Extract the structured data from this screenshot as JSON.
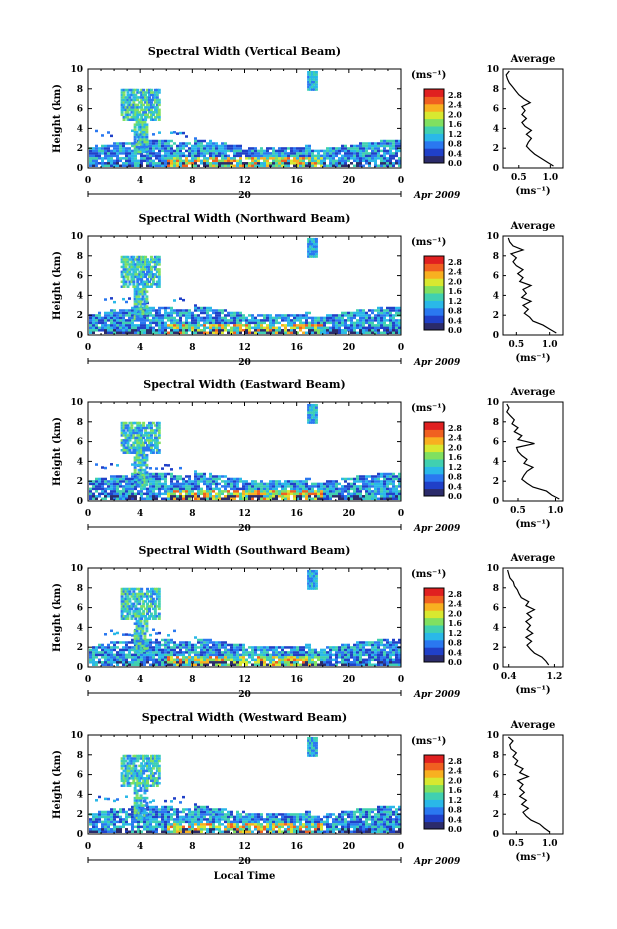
{
  "figure": {
    "xlabel": "Local Time",
    "date_label": "Apr 2009",
    "day_label": "20",
    "ylabel": "Height (km)",
    "units": "(ms⁻¹)",
    "avg_title": "Average",
    "avg_xlabel": "(ms⁻¹)"
  },
  "colorbar": {
    "ticks": [
      "2.8",
      "2.4",
      "2.0",
      "1.6",
      "1.2",
      "0.8",
      "0.4",
      "0.0"
    ],
    "colors": [
      "#2b2b6a",
      "#2040c8",
      "#2a78f0",
      "#2ab8e8",
      "#40d0b0",
      "#80e060",
      "#d8e830",
      "#f8b020",
      "#f06020",
      "#e02020"
    ]
  },
  "chart_data": [
    {
      "type": "heatmap",
      "title": "Spectral Width (Vertical Beam)",
      "xlabel": "Local Time",
      "ylabel": "Height (km)",
      "x_ticks": [
        "0",
        "4",
        "8",
        "12",
        "16",
        "20",
        "0"
      ],
      "y_ticks": [
        "0",
        "2",
        "4",
        "6",
        "8",
        "10"
      ],
      "xlim": [
        0,
        24
      ],
      "ylim": [
        0,
        10
      ],
      "avg": {
        "title": "Average",
        "x_ticks": [
          "0.5",
          "1.0"
        ],
        "xlim": [
          0.25,
          1.2
        ],
        "profile": [
          [
            1.05,
            0.2
          ],
          [
            0.95,
            0.6
          ],
          [
            0.85,
            1.0
          ],
          [
            0.75,
            1.4
          ],
          [
            0.68,
            1.8
          ],
          [
            0.62,
            2.2
          ],
          [
            0.65,
            2.6
          ],
          [
            0.7,
            3.0
          ],
          [
            0.62,
            3.4
          ],
          [
            0.7,
            3.8
          ],
          [
            0.6,
            4.2
          ],
          [
            0.55,
            4.6
          ],
          [
            0.62,
            5.0
          ],
          [
            0.55,
            5.4
          ],
          [
            0.6,
            5.8
          ],
          [
            0.55,
            6.2
          ],
          [
            0.68,
            6.6
          ],
          [
            0.58,
            7.0
          ],
          [
            0.5,
            7.4
          ],
          [
            0.45,
            7.8
          ],
          [
            0.4,
            8.2
          ],
          [
            0.35,
            8.6
          ],
          [
            0.32,
            9.0
          ],
          [
            0.3,
            9.4
          ],
          [
            0.35,
            9.8
          ]
        ]
      }
    },
    {
      "type": "heatmap",
      "title": "Spectral Width (Northward Beam)",
      "xlabel": "Local Time",
      "ylabel": "Height (km)",
      "x_ticks": [
        "0",
        "4",
        "8",
        "12",
        "16",
        "20",
        "0"
      ],
      "y_ticks": [
        "0",
        "2",
        "4",
        "6",
        "8",
        "10"
      ],
      "xlim": [
        0,
        24
      ],
      "ylim": [
        0,
        10
      ],
      "avg": {
        "title": "Average",
        "x_ticks": [
          "0.5",
          "1.0"
        ],
        "xlim": [
          0.3,
          1.2
        ],
        "profile": [
          [
            1.1,
            0.2
          ],
          [
            1.0,
            0.6
          ],
          [
            0.9,
            1.0
          ],
          [
            0.75,
            1.4
          ],
          [
            0.7,
            1.8
          ],
          [
            0.62,
            2.2
          ],
          [
            0.68,
            2.6
          ],
          [
            0.6,
            3.0
          ],
          [
            0.72,
            3.4
          ],
          [
            0.58,
            3.8
          ],
          [
            0.65,
            4.2
          ],
          [
            0.6,
            4.6
          ],
          [
            0.72,
            5.0
          ],
          [
            0.55,
            5.4
          ],
          [
            0.6,
            5.8
          ],
          [
            0.52,
            6.2
          ],
          [
            0.6,
            6.6
          ],
          [
            0.5,
            7.0
          ],
          [
            0.45,
            7.4
          ],
          [
            0.5,
            7.8
          ],
          [
            0.42,
            8.2
          ],
          [
            0.6,
            8.6
          ],
          [
            0.45,
            9.0
          ],
          [
            0.4,
            9.4
          ],
          [
            0.38,
            9.8
          ]
        ]
      }
    },
    {
      "type": "heatmap",
      "title": "Spectral Width (Eastward Beam)",
      "xlabel": "Local Time",
      "ylabel": "Height (km)",
      "x_ticks": [
        "0",
        "4",
        "8",
        "12",
        "16",
        "20",
        "0"
      ],
      "y_ticks": [
        "0",
        "2",
        "4",
        "6",
        "8",
        "10"
      ],
      "xlim": [
        0,
        24
      ],
      "ylim": [
        0,
        10
      ],
      "avg": {
        "title": "Average",
        "x_ticks": [
          "0.5",
          "1.0"
        ],
        "xlim": [
          0.3,
          1.1
        ],
        "profile": [
          [
            1.05,
            0.2
          ],
          [
            0.95,
            0.6
          ],
          [
            0.88,
            1.0
          ],
          [
            0.7,
            1.4
          ],
          [
            0.62,
            1.8
          ],
          [
            0.55,
            2.2
          ],
          [
            0.58,
            2.6
          ],
          [
            0.62,
            3.0
          ],
          [
            0.7,
            3.4
          ],
          [
            0.58,
            3.8
          ],
          [
            0.62,
            4.2
          ],
          [
            0.55,
            4.6
          ],
          [
            0.5,
            5.0
          ],
          [
            0.48,
            5.4
          ],
          [
            0.72,
            5.8
          ],
          [
            0.5,
            6.2
          ],
          [
            0.55,
            6.6
          ],
          [
            0.45,
            7.0
          ],
          [
            0.5,
            7.4
          ],
          [
            0.42,
            7.8
          ],
          [
            0.45,
            8.2
          ],
          [
            0.4,
            8.6
          ],
          [
            0.35,
            9.0
          ],
          [
            0.38,
            9.4
          ],
          [
            0.35,
            9.8
          ]
        ]
      }
    },
    {
      "type": "heatmap",
      "title": "Spectral Width (Southward Beam)",
      "xlabel": "Local Time",
      "ylabel": "Height (km)",
      "x_ticks": [
        "0",
        "4",
        "8",
        "12",
        "16",
        "20",
        "0"
      ],
      "y_ticks": [
        "0",
        "2",
        "4",
        "6",
        "8",
        "10"
      ],
      "xlim": [
        0,
        24
      ],
      "ylim": [
        0,
        10
      ],
      "avg": {
        "title": "Average",
        "x_ticks": [
          "0.4",
          "1.2"
        ],
        "xlim": [
          0.3,
          1.35
        ],
        "profile": [
          [
            1.1,
            0.2
          ],
          [
            1.05,
            0.6
          ],
          [
            0.98,
            1.0
          ],
          [
            0.85,
            1.4
          ],
          [
            0.78,
            1.8
          ],
          [
            0.72,
            2.2
          ],
          [
            0.8,
            2.6
          ],
          [
            0.7,
            3.0
          ],
          [
            0.82,
            3.4
          ],
          [
            0.72,
            3.8
          ],
          [
            0.78,
            4.2
          ],
          [
            0.7,
            4.6
          ],
          [
            0.8,
            5.0
          ],
          [
            0.72,
            5.4
          ],
          [
            0.85,
            5.8
          ],
          [
            0.7,
            6.2
          ],
          [
            0.75,
            6.6
          ],
          [
            0.62,
            7.0
          ],
          [
            0.58,
            7.4
          ],
          [
            0.55,
            7.8
          ],
          [
            0.5,
            8.2
          ],
          [
            0.48,
            8.6
          ],
          [
            0.42,
            9.0
          ],
          [
            0.4,
            9.4
          ],
          [
            0.38,
            9.8
          ]
        ]
      }
    },
    {
      "type": "heatmap",
      "title": "Spectral Width (Westward Beam)",
      "xlabel": "Local Time",
      "ylabel": "Height (km)",
      "x_ticks": [
        "0",
        "4",
        "8",
        "12",
        "16",
        "20",
        "0"
      ],
      "y_ticks": [
        "0",
        "2",
        "4",
        "6",
        "8",
        "10"
      ],
      "xlim": [
        0,
        24
      ],
      "ylim": [
        0,
        10
      ],
      "avg": {
        "title": "Average",
        "x_ticks": [
          "0.5",
          "1.0"
        ],
        "xlim": [
          0.3,
          1.2
        ],
        "profile": [
          [
            1.0,
            0.2
          ],
          [
            0.92,
            0.6
          ],
          [
            0.85,
            1.0
          ],
          [
            0.72,
            1.4
          ],
          [
            0.65,
            1.8
          ],
          [
            0.6,
            2.2
          ],
          [
            0.68,
            2.6
          ],
          [
            0.58,
            3.0
          ],
          [
            0.65,
            3.4
          ],
          [
            0.55,
            3.8
          ],
          [
            0.62,
            4.2
          ],
          [
            0.55,
            4.6
          ],
          [
            0.6,
            5.0
          ],
          [
            0.52,
            5.4
          ],
          [
            0.68,
            5.8
          ],
          [
            0.55,
            6.2
          ],
          [
            0.6,
            6.6
          ],
          [
            0.48,
            7.0
          ],
          [
            0.52,
            7.4
          ],
          [
            0.45,
            7.8
          ],
          [
            0.5,
            8.2
          ],
          [
            0.42,
            8.6
          ],
          [
            0.4,
            9.0
          ],
          [
            0.45,
            9.4
          ],
          [
            0.38,
            9.8
          ]
        ]
      }
    }
  ]
}
